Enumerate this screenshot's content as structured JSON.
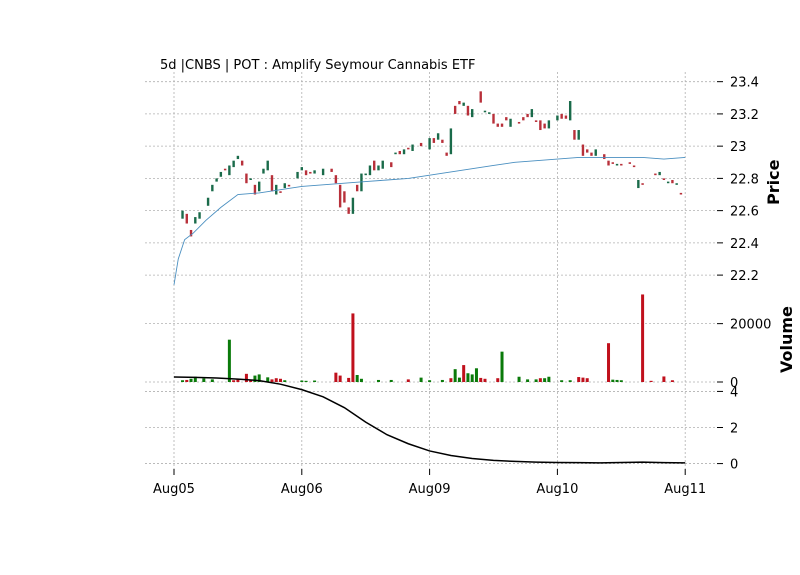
{
  "chart_data": {
    "type": "candlestick",
    "title": "5d |CNBS | POT : Amplify Seymour Cannabis ETF",
    "colors": {
      "up": "#1a6b4a",
      "down": "#b8303a",
      "ma": "#4a8fc0",
      "vol_up": "#0a7a0a",
      "vol_down": "#c0101c",
      "osc": "#000000"
    },
    "x_dates": [
      "Aug05",
      "Aug06",
      "Aug09",
      "Aug10",
      "Aug11"
    ],
    "price_panel": {
      "ylabel": "Price",
      "ylim": [
        22.12,
        23.46
      ],
      "yticks": [
        22.2,
        22.4,
        22.6,
        22.8,
        23.0,
        23.2,
        23.4
      ],
      "candles": [
        [
          0.4,
          22.55,
          22.6
        ],
        [
          0.6,
          22.58,
          22.52
        ],
        [
          0.8,
          22.48,
          22.44
        ],
        [
          1.0,
          22.52,
          22.56
        ],
        [
          1.2,
          22.55,
          22.59
        ],
        [
          1.6,
          22.63,
          22.68
        ],
        [
          1.8,
          22.72,
          22.76
        ],
        [
          2.0,
          22.78,
          22.8
        ],
        [
          2.2,
          22.81,
          22.84
        ],
        [
          2.4,
          22.86,
          22.85
        ],
        [
          2.6,
          22.82,
          22.88
        ],
        [
          2.8,
          22.87,
          22.91
        ],
        [
          3.0,
          22.92,
          22.94
        ],
        [
          3.2,
          22.91,
          22.88
        ],
        [
          3.4,
          22.83,
          22.77
        ],
        [
          3.6,
          22.79,
          22.8
        ],
        [
          3.8,
          22.76,
          22.7
        ],
        [
          4.0,
          22.72,
          22.78
        ],
        [
          4.2,
          22.83,
          22.86
        ],
        [
          4.4,
          22.85,
          22.91
        ],
        [
          4.6,
          22.82,
          22.72
        ],
        [
          4.8,
          22.7,
          22.76
        ],
        [
          5.0,
          22.72,
          22.71
        ],
        [
          5.2,
          22.74,
          22.77
        ],
        [
          5.4,
          22.76,
          22.75
        ],
        [
          5.8,
          22.8,
          22.84
        ],
        [
          6.0,
          22.85,
          22.87
        ],
        [
          6.2,
          22.85,
          22.82
        ],
        [
          6.4,
          22.84,
          22.83
        ],
        [
          6.6,
          22.83,
          22.85
        ],
        [
          7.0,
          22.82,
          22.86
        ],
        [
          7.4,
          22.86,
          22.84
        ],
        [
          7.6,
          22.82,
          22.77
        ],
        [
          7.8,
          22.76,
          22.62
        ],
        [
          8.0,
          22.72,
          22.65
        ],
        [
          8.2,
          22.62,
          22.58
        ],
        [
          8.4,
          22.58,
          22.68
        ],
        [
          8.6,
          22.76,
          22.72
        ],
        [
          8.8,
          22.72,
          22.83
        ],
        [
          9.0,
          22.82,
          22.83
        ],
        [
          9.2,
          22.82,
          22.88
        ],
        [
          9.4,
          22.91,
          22.85
        ],
        [
          9.6,
          22.85,
          22.88
        ],
        [
          9.8,
          22.86,
          22.91
        ],
        [
          10.2,
          22.9,
          22.87
        ],
        [
          10.4,
          22.95,
          22.96
        ],
        [
          10.6,
          22.97,
          22.95
        ],
        [
          10.8,
          22.95,
          22.98
        ],
        [
          11.0,
          22.99,
          22.98
        ],
        [
          11.2,
          22.97,
          23.01
        ],
        [
          11.6,
          23.02,
          23.0
        ],
        [
          12.0,
          22.98,
          23.05
        ],
        [
          12.2,
          23.05,
          23.02
        ],
        [
          12.4,
          23.04,
          23.08
        ],
        [
          12.6,
          23.04,
          23.02
        ],
        [
          12.8,
          22.96,
          22.94
        ],
        [
          13.0,
          22.95,
          23.11
        ],
        [
          13.2,
          23.25,
          23.2
        ],
        [
          13.4,
          23.28,
          23.26
        ],
        [
          13.6,
          23.25,
          23.27
        ],
        [
          13.8,
          23.25,
          23.19
        ],
        [
          14.0,
          23.18,
          23.23
        ],
        [
          14.4,
          23.34,
          23.27
        ],
        [
          14.6,
          23.21,
          23.22
        ],
        [
          14.8,
          23.2,
          23.21
        ],
        [
          15.0,
          23.2,
          23.14
        ],
        [
          15.2,
          23.14,
          23.12
        ],
        [
          15.4,
          23.14,
          23.12
        ],
        [
          15.6,
          23.18,
          23.16
        ],
        [
          15.8,
          23.12,
          23.17
        ],
        [
          16.2,
          23.15,
          23.14
        ],
        [
          16.4,
          23.18,
          23.16
        ],
        [
          16.6,
          23.2,
          23.18
        ],
        [
          16.8,
          23.18,
          23.23
        ],
        [
          17.0,
          23.16,
          23.15
        ],
        [
          17.2,
          23.16,
          23.1
        ],
        [
          17.4,
          23.14,
          23.11
        ],
        [
          17.6,
          23.11,
          23.16
        ],
        [
          18.0,
          23.16,
          23.19
        ],
        [
          18.2,
          23.2,
          23.17
        ],
        [
          18.4,
          23.19,
          23.17
        ],
        [
          18.6,
          23.16,
          23.28
        ],
        [
          18.8,
          23.1,
          23.04
        ],
        [
          19.0,
          23.04,
          23.1
        ],
        [
          19.2,
          23.01,
          22.94
        ],
        [
          19.4,
          22.98,
          22.96
        ],
        [
          19.6,
          22.96,
          22.94
        ],
        [
          19.8,
          22.94,
          22.98
        ],
        [
          20.2,
          22.95,
          22.92
        ],
        [
          20.4,
          22.91,
          22.88
        ],
        [
          20.6,
          22.9,
          22.89
        ],
        [
          20.8,
          22.88,
          22.89
        ],
        [
          21.0,
          22.89,
          22.88
        ],
        [
          21.4,
          22.9,
          22.89
        ],
        [
          21.6,
          22.88,
          22.87
        ],
        [
          21.8,
          22.74,
          22.79
        ],
        [
          22.0,
          22.77,
          22.76
        ],
        [
          22.6,
          22.83,
          22.82
        ],
        [
          22.8,
          22.82,
          22.84
        ],
        [
          23.0,
          22.8,
          22.79
        ],
        [
          23.2,
          22.77,
          22.78
        ],
        [
          23.4,
          22.79,
          22.77
        ],
        [
          23.6,
          22.76,
          22.77
        ],
        [
          23.8,
          22.71,
          22.7
        ]
      ],
      "moving_average": [
        [
          0,
          22.14
        ],
        [
          0.2,
          22.3
        ],
        [
          0.5,
          22.42
        ],
        [
          0.9,
          22.46
        ],
        [
          1.5,
          22.54
        ],
        [
          2.2,
          22.62
        ],
        [
          3.0,
          22.7
        ],
        [
          4.0,
          22.71
        ],
        [
          5.0,
          22.73
        ],
        [
          6.0,
          22.75
        ],
        [
          7.0,
          22.76
        ],
        [
          8.0,
          22.77
        ],
        [
          9.0,
          22.78
        ],
        [
          10.0,
          22.79
        ],
        [
          11.0,
          22.8
        ],
        [
          12.0,
          22.82
        ],
        [
          13.0,
          22.84
        ],
        [
          14.0,
          22.86
        ],
        [
          15.0,
          22.88
        ],
        [
          16.0,
          22.9
        ],
        [
          17.0,
          22.91
        ],
        [
          18.0,
          22.92
        ],
        [
          19.0,
          22.93
        ],
        [
          20.0,
          22.93
        ],
        [
          21.0,
          22.93
        ],
        [
          22.0,
          22.93
        ],
        [
          23.0,
          22.92
        ],
        [
          24.0,
          22.93
        ]
      ]
    },
    "volume_panel": {
      "ylabel": "Volume",
      "ylim": [
        0,
        30500
      ],
      "yticks": [
        0,
        20000
      ],
      "bars": [
        [
          0.4,
          600,
          1
        ],
        [
          0.6,
          700,
          0
        ],
        [
          0.8,
          1100,
          1
        ],
        [
          1.0,
          1800,
          1
        ],
        [
          1.4,
          1200,
          1
        ],
        [
          1.8,
          900,
          1
        ],
        [
          2.6,
          14500,
          1
        ],
        [
          2.8,
          600,
          0
        ],
        [
          3.0,
          1000,
          0
        ],
        [
          3.4,
          2800,
          0
        ],
        [
          3.6,
          700,
          0
        ],
        [
          3.8,
          2200,
          1
        ],
        [
          4.0,
          2600,
          1
        ],
        [
          4.4,
          1600,
          1
        ],
        [
          4.6,
          900,
          0
        ],
        [
          4.8,
          1300,
          0
        ],
        [
          5.0,
          1100,
          0
        ],
        [
          5.2,
          600,
          1
        ],
        [
          6.0,
          500,
          1
        ],
        [
          6.2,
          400,
          1
        ],
        [
          6.6,
          500,
          1
        ],
        [
          7.6,
          3200,
          0
        ],
        [
          7.8,
          2200,
          0
        ],
        [
          8.2,
          1400,
          0
        ],
        [
          8.4,
          23500,
          0
        ],
        [
          8.6,
          2400,
          1
        ],
        [
          8.8,
          1100,
          1
        ],
        [
          9.6,
          700,
          1
        ],
        [
          10.2,
          700,
          1
        ],
        [
          11.0,
          900,
          0
        ],
        [
          11.6,
          1500,
          1
        ],
        [
          12.0,
          600,
          1
        ],
        [
          12.6,
          700,
          1
        ],
        [
          13.0,
          1300,
          0
        ],
        [
          13.2,
          4400,
          1
        ],
        [
          13.4,
          1500,
          1
        ],
        [
          13.6,
          5800,
          0
        ],
        [
          13.8,
          3000,
          1
        ],
        [
          14.0,
          2600,
          1
        ],
        [
          14.2,
          4700,
          1
        ],
        [
          14.4,
          1400,
          0
        ],
        [
          14.6,
          1100,
          0
        ],
        [
          15.2,
          1300,
          0
        ],
        [
          15.4,
          10400,
          1
        ],
        [
          16.2,
          1800,
          1
        ],
        [
          16.6,
          900,
          1
        ],
        [
          17.0,
          900,
          1
        ],
        [
          17.2,
          1300,
          0
        ],
        [
          17.4,
          1300,
          1
        ],
        [
          17.6,
          1800,
          1
        ],
        [
          18.2,
          600,
          1
        ],
        [
          18.6,
          600,
          1
        ],
        [
          19.0,
          1700,
          0
        ],
        [
          19.2,
          1500,
          0
        ],
        [
          19.4,
          1300,
          0
        ],
        [
          20.4,
          13300,
          0
        ],
        [
          20.6,
          800,
          1
        ],
        [
          20.8,
          700,
          1
        ],
        [
          21.0,
          600,
          1
        ],
        [
          22.0,
          30000,
          0
        ],
        [
          22.4,
          400,
          0
        ],
        [
          23.0,
          1900,
          0
        ],
        [
          23.4,
          600,
          0
        ]
      ]
    },
    "oscillator_panel": {
      "ylim": [
        -0.3,
        4.3
      ],
      "yticks": [
        0,
        2,
        4
      ],
      "line": [
        [
          0,
          4.8
        ],
        [
          1,
          4.78
        ],
        [
          2,
          4.74
        ],
        [
          3,
          4.68
        ],
        [
          4,
          4.6
        ],
        [
          5,
          4.4
        ],
        [
          6,
          4.1
        ],
        [
          7,
          3.7
        ],
        [
          8,
          3.1
        ],
        [
          9,
          2.3
        ],
        [
          10,
          1.6
        ],
        [
          11,
          1.1
        ],
        [
          12,
          0.7
        ],
        [
          13,
          0.45
        ],
        [
          14,
          0.28
        ],
        [
          15,
          0.18
        ],
        [
          16,
          0.12
        ],
        [
          17,
          0.08
        ],
        [
          18,
          0.06
        ],
        [
          19,
          0.05
        ],
        [
          20,
          0.04
        ],
        [
          21,
          0.06
        ],
        [
          22,
          0.08
        ],
        [
          23,
          0.05
        ],
        [
          24,
          0.04
        ]
      ]
    }
  }
}
